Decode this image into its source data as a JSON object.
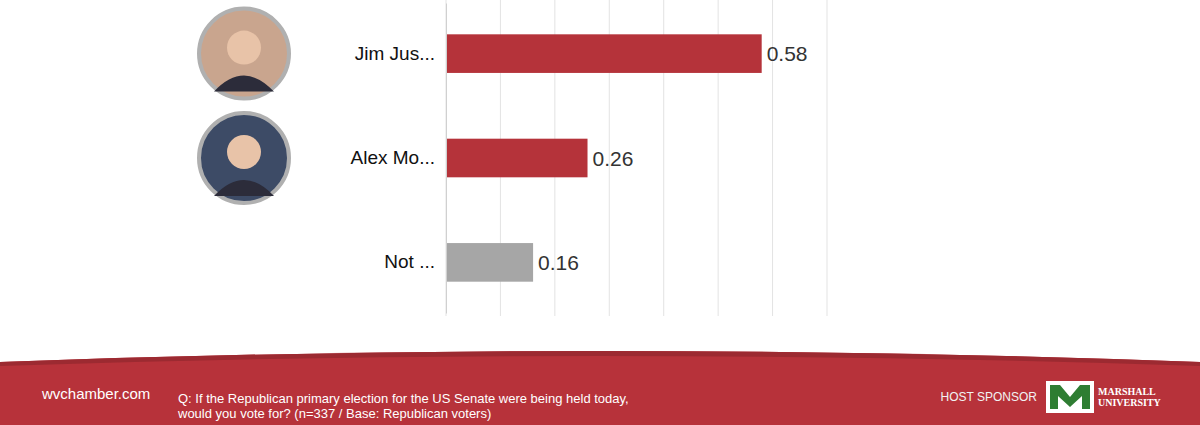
{
  "chart_data": {
    "type": "bar",
    "orientation": "horizontal",
    "categories": [
      "Jim Jus...",
      "Alex Mo...",
      "Not ..."
    ],
    "values": [
      0.58,
      0.26,
      0.16
    ],
    "colors": [
      "#b5333a",
      "#b5333a",
      "#a6a6a6"
    ],
    "xlim": [
      0,
      0.7
    ],
    "xticks": [
      0,
      0.1,
      0.2,
      0.3,
      0.4,
      0.5,
      0.6,
      0.7
    ],
    "grid": true,
    "data_labels": true,
    "tick_labels": false
  },
  "footer": {
    "source": "wvchamber.com",
    "question": [
      "Q: If the Republican primary election for the US Senate were being held today,",
      "would you vote for? (n=337 / Base: Republican voters)"
    ],
    "sponsor_label": "HOST SPONSOR",
    "sponsor_name": [
      "MARSHALL",
      "UNIVERSITY"
    ]
  }
}
